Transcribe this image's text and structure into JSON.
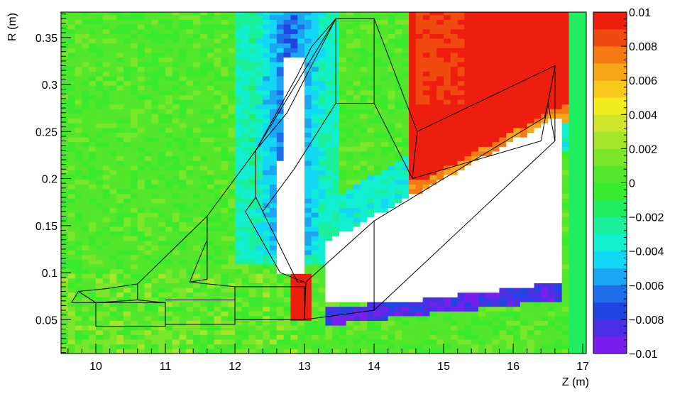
{
  "chart_data": {
    "type": "heatmap",
    "title": "",
    "xlabel": "Z (m)",
    "ylabel": "R (m)",
    "xlim": [
      9.5,
      17.05
    ],
    "ylim": [
      0.014,
      0.377
    ],
    "x_ticks": [
      "10",
      "11",
      "12",
      "13",
      "14",
      "15",
      "16",
      "17"
    ],
    "y_ticks": [
      "0.05",
      "0.1",
      "0.15",
      "0.2",
      "0.25",
      "0.3",
      "0.35"
    ],
    "colorbar": {
      "range": [
        -0.01,
        0.01
      ],
      "ticks": [
        "0.01",
        "0.008",
        "0.006",
        "0.004",
        "0.002",
        "0",
        "−0.002",
        "−0.004",
        "−0.006",
        "−0.008",
        "−0.01"
      ],
      "colors": [
        "#7a1ef0",
        "#4a2fe6",
        "#1f44e0",
        "#1d6ee8",
        "#1aa6f2",
        "#12d7f5",
        "#10f0d0",
        "#1af09a",
        "#20ee60",
        "#38eb2c",
        "#52e72a",
        "#7ae62a",
        "#a6e62a",
        "#cfe42a",
        "#f2ec1c",
        "#f8c81a",
        "#f6a418",
        "#f47a14",
        "#f04a10",
        "#ee1e0e"
      ]
    },
    "field_description": "binned R-Z map, mostly near 0, with red (+0.01) and blue/purple (-0.01) lobes; white = out of range",
    "geometry_outlines": {
      "units": "meters (Z, R)",
      "polylines": [
        [
          [
            9.65,
            0.068
          ],
          [
            9.75,
            0.08
          ],
          [
            10.0,
            0.068
          ],
          [
            9.65,
            0.068
          ]
        ],
        [
          [
            9.75,
            0.08
          ],
          [
            10.0,
            0.068
          ],
          [
            10.0,
            0.043
          ],
          [
            11.0,
            0.043
          ],
          [
            11.0,
            0.068
          ],
          [
            10.0,
            0.068
          ]
        ],
        [
          [
            9.75,
            0.08
          ],
          [
            10.15,
            0.083
          ],
          [
            10.6,
            0.088
          ],
          [
            10.6,
            0.071
          ],
          [
            10.0,
            0.068
          ]
        ],
        [
          [
            10.6,
            0.088
          ],
          [
            11.6,
            0.16
          ],
          [
            11.6,
            0.093
          ],
          [
            11.35,
            0.09
          ],
          [
            11.6,
            0.135
          ],
          [
            11.6,
            0.093
          ]
        ],
        [
          [
            10.6,
            0.071
          ],
          [
            11.0,
            0.068
          ],
          [
            11.0,
            0.043
          ]
        ],
        [
          [
            11.0,
            0.071
          ],
          [
            12.0,
            0.071
          ],
          [
            12.0,
            0.045
          ],
          [
            11.0,
            0.045
          ]
        ],
        [
          [
            11.35,
            0.09
          ],
          [
            12.0,
            0.085
          ],
          [
            13.0,
            0.085
          ],
          [
            13.0,
            0.05
          ],
          [
            12.0,
            0.05
          ],
          [
            12.0,
            0.085
          ]
        ],
        [
          [
            11.6,
            0.16
          ],
          [
            12.3,
            0.23
          ],
          [
            13.45,
            0.37
          ],
          [
            14.0,
            0.37
          ],
          [
            14.0,
            0.28
          ],
          [
            13.45,
            0.28
          ],
          [
            13.45,
            0.37
          ]
        ],
        [
          [
            11.6,
            0.16
          ],
          [
            11.6,
            0.093
          ]
        ],
        [
          [
            12.3,
            0.23
          ],
          [
            12.3,
            0.18
          ],
          [
            12.4,
            0.165
          ],
          [
            12.3,
            0.18
          ]
        ],
        [
          [
            12.15,
            0.165
          ],
          [
            12.3,
            0.18
          ]
        ],
        [
          [
            12.15,
            0.165
          ],
          [
            12.65,
            0.1
          ],
          [
            13.0,
            0.09
          ]
        ],
        [
          [
            12.4,
            0.165
          ],
          [
            12.9,
            0.09
          ],
          [
            13.0,
            0.09
          ]
        ],
        [
          [
            12.3,
            0.18
          ],
          [
            12.15,
            0.165
          ]
        ],
        [
          [
            12.3,
            0.23
          ],
          [
            12.9,
            0.31
          ],
          [
            13.1,
            0.34
          ],
          [
            13.45,
            0.37
          ]
        ],
        [
          [
            12.3,
            0.23
          ],
          [
            12.75,
            0.27
          ],
          [
            13.45,
            0.37
          ]
        ],
        [
          [
            12.4,
            0.165
          ],
          [
            12.85,
            0.21
          ],
          [
            13.45,
            0.28
          ]
        ],
        [
          [
            14.0,
            0.28
          ],
          [
            14.55,
            0.2
          ],
          [
            14.62,
            0.25
          ],
          [
            14.0,
            0.37
          ]
        ],
        [
          [
            14.62,
            0.25
          ],
          [
            16.6,
            0.32
          ],
          [
            16.4,
            0.24
          ],
          [
            14.55,
            0.2
          ]
        ],
        [
          [
            16.6,
            0.32
          ],
          [
            16.5,
            0.28
          ],
          [
            16.6,
            0.24
          ]
        ],
        [
          [
            13.0,
            0.05
          ],
          [
            14.0,
            0.06
          ],
          [
            16.6,
            0.24
          ],
          [
            16.6,
            0.32
          ]
        ],
        [
          [
            13.0,
            0.05
          ],
          [
            13.02,
            0.09
          ],
          [
            14.0,
            0.155
          ],
          [
            14.0,
            0.06
          ]
        ],
        [
          [
            14.0,
            0.155
          ],
          [
            16.45,
            0.265
          ],
          [
            16.5,
            0.28
          ]
        ]
      ]
    }
  }
}
